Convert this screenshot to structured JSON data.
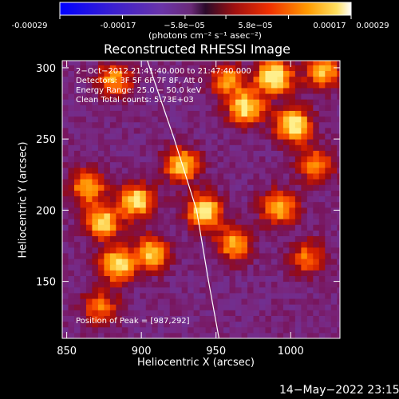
{
  "chart_data": {
    "type": "heatmap",
    "title": "Reconstructed RHESSI Image",
    "xlabel": "Heliocentric X (arcsec)",
    "ylabel": "Heliocentric Y (arcsec)",
    "xlim": [
      847,
      1033
    ],
    "ylim": [
      110,
      305
    ],
    "x_ticks": [
      850,
      900,
      950,
      1000
    ],
    "y_ticks": [
      150,
      200,
      250,
      300
    ],
    "colorbar": {
      "ticks": [
        "-0.00029",
        "-0.00017",
        "−5.8e−05",
        "5.8e−05",
        "0.00017",
        "0.00029"
      ],
      "unit_label": "(photons cm⁻² s⁻¹ asec⁻²)",
      "range": [
        -0.00029,
        0.00029
      ]
    },
    "annotations": [
      "2−Oct−2012 21:41:40.000 to 21:47:40.000",
      "Detectors: 3F 5F 6F 7F 8F, Att 0",
      "Energy Range: 25.0 − 50.0 keV",
      "Clean     Total counts: 5.73E+03"
    ],
    "peak_label": "Position of Peak = [987,292]",
    "limb_curve_x": [
      [
        110,
        952
      ],
      [
        150,
        945
      ],
      [
        200,
        937
      ],
      [
        250,
        922
      ],
      [
        305,
        904
      ]
    ],
    "bright_sources": [
      {
        "x": 987,
        "y": 292,
        "level": 1.0
      },
      {
        "x": 1000,
        "y": 258,
        "level": 0.95
      },
      {
        "x": 968,
        "y": 270,
        "level": 0.85
      },
      {
        "x": 940,
        "y": 198,
        "level": 0.9
      },
      {
        "x": 925,
        "y": 230,
        "level": 0.8
      },
      {
        "x": 895,
        "y": 205,
        "level": 0.85
      },
      {
        "x": 872,
        "y": 190,
        "level": 0.8
      },
      {
        "x": 862,
        "y": 215,
        "level": 0.7
      },
      {
        "x": 882,
        "y": 160,
        "level": 0.85
      },
      {
        "x": 905,
        "y": 168,
        "level": 0.75
      },
      {
        "x": 960,
        "y": 175,
        "level": 0.7
      },
      {
        "x": 990,
        "y": 200,
        "level": 0.75
      },
      {
        "x": 1015,
        "y": 230,
        "level": 0.6
      },
      {
        "x": 1010,
        "y": 165,
        "level": 0.55
      },
      {
        "x": 1020,
        "y": 295,
        "level": 0.7
      },
      {
        "x": 955,
        "y": 290,
        "level": 0.6
      },
      {
        "x": 870,
        "y": 130,
        "level": 0.55
      },
      {
        "x": 880,
        "y": 290,
        "level": 0.65
      }
    ]
  },
  "timestamp": "14−May−2022 23:15"
}
